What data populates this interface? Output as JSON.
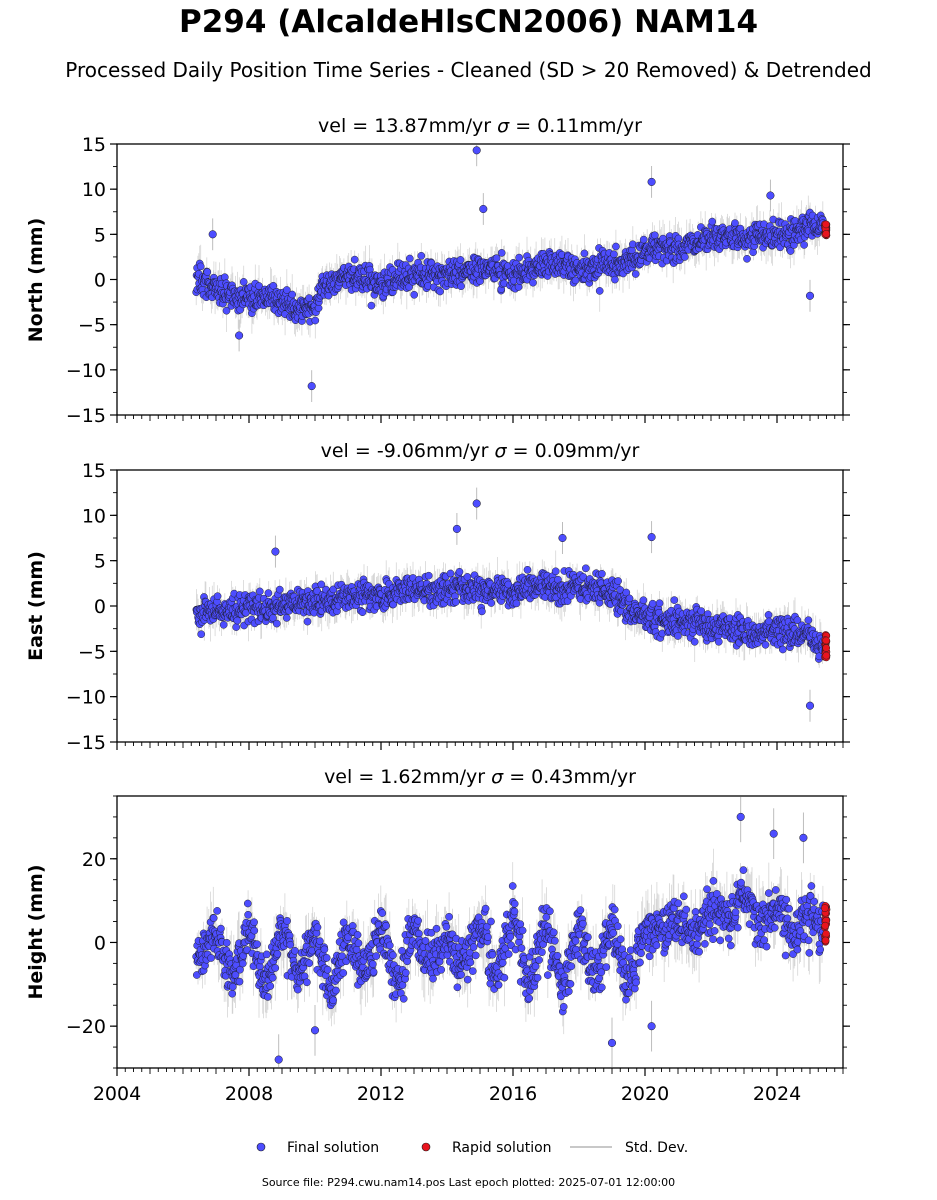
{
  "title": "P294 (AlcaldeHlsCN2006) NAM14",
  "subtitle": "Processed Daily Position Time Series - Cleaned (SD > 20 Removed) & Detrended",
  "footer": "Source file: P294.cwu.nam14.pos  Last epoch plotted: 2025-07-01 12:00:00",
  "legend": {
    "final_label": "Final solution",
    "rapid_label": "Rapid solution",
    "stddev_label": "Std. Dev."
  },
  "colors": {
    "final": "#4d4dff",
    "rapid": "#e8141e",
    "stddev": "#b5b5b5",
    "marker_edge": "#1a1a1a"
  },
  "chart_data": [
    {
      "type": "scatter",
      "panel": "north",
      "title_prefix": "vel = 13.87mm/yr",
      "title_sigma": "σ",
      "title_suffix": " = 0.11mm/yr",
      "ylabel": "North (mm)",
      "xlabel": "",
      "xlim": [
        2004,
        2026
      ],
      "ylim": [
        -15,
        15
      ],
      "yticks": [
        "15",
        "10",
        "5",
        "0",
        "−5",
        "−10",
        "−15"
      ],
      "x_tick_labels": [],
      "grid": false,
      "series": [
        {
          "name": "Final solution",
          "x": [
            2006.4,
            2007.0,
            2007.5,
            2008.0,
            2008.5,
            2009.0,
            2009.5,
            2009.9,
            2010.2,
            2010.6,
            2011.0,
            2011.5,
            2012.0,
            2012.5,
            2013.0,
            2013.5,
            2014.0,
            2014.5,
            2015.0,
            2015.5,
            2016.0,
            2016.5,
            2017.0,
            2017.5,
            2018.0,
            2018.5,
            2019.0,
            2019.5,
            2020.0,
            2020.5,
            2021.0,
            2021.5,
            2022.0,
            2022.5,
            2023.0,
            2023.5,
            2024.0,
            2024.5,
            2025.0,
            2025.4
          ],
          "y": [
            0.5,
            -1.0,
            -1.8,
            -2.2,
            -2.0,
            -2.5,
            -3.5,
            -3.8,
            -1.0,
            -0.5,
            0.0,
            0.2,
            -0.5,
            0.0,
            0.3,
            0.5,
            0.5,
            0.8,
            1.0,
            1.2,
            0.5,
            0.8,
            1.5,
            1.8,
            1.2,
            1.5,
            1.8,
            2.0,
            3.0,
            3.5,
            3.5,
            4.0,
            4.5,
            4.8,
            4.5,
            5.0,
            4.5,
            5.0,
            5.5,
            6.0
          ]
        },
        {
          "name": "Rapid solution",
          "x": [
            2025.45,
            2025.48,
            2025.5
          ],
          "y": [
            6.0,
            5.5,
            5.0
          ]
        }
      ],
      "outliers": {
        "x": [
          2014.9,
          2015.1,
          2009.9,
          2006.9,
          2020.2,
          2007.7,
          2025.0,
          2023.8
        ],
        "y": [
          14.3,
          7.8,
          -11.8,
          5.0,
          10.8,
          -6.2,
          -1.8,
          9.3
        ]
      }
    },
    {
      "type": "scatter",
      "panel": "east",
      "title_prefix": "vel = -9.06mm/yr",
      "title_sigma": "σ",
      "title_suffix": " = 0.09mm/yr",
      "ylabel": "East (mm)",
      "xlabel": "",
      "xlim": [
        2004,
        2026
      ],
      "ylim": [
        -15,
        15
      ],
      "yticks": [
        "15",
        "10",
        "5",
        "0",
        "−5",
        "−10",
        "−15"
      ],
      "x_tick_labels": [],
      "grid": false,
      "series": [
        {
          "name": "Final solution",
          "x": [
            2006.4,
            2007.0,
            2007.5,
            2008.0,
            2008.5,
            2009.0,
            2009.5,
            2010.0,
            2010.5,
            2011.0,
            2011.5,
            2012.0,
            2012.5,
            2013.0,
            2013.5,
            2014.0,
            2014.5,
            2015.0,
            2015.5,
            2016.0,
            2016.5,
            2017.0,
            2017.5,
            2018.0,
            2018.5,
            2019.0,
            2019.5,
            2020.0,
            2020.5,
            2021.0,
            2021.5,
            2022.0,
            2022.5,
            2023.0,
            2023.5,
            2024.0,
            2024.5,
            2025.0,
            2025.4
          ],
          "y": [
            -1.0,
            -0.5,
            -0.5,
            0.0,
            -0.3,
            0.0,
            0.2,
            0.5,
            0.8,
            1.0,
            1.2,
            1.0,
            1.5,
            1.8,
            1.5,
            2.0,
            2.0,
            1.5,
            1.8,
            1.5,
            2.0,
            2.2,
            2.0,
            2.2,
            2.0,
            1.5,
            -0.5,
            -1.0,
            -1.5,
            -1.8,
            -2.0,
            -2.5,
            -2.2,
            -2.8,
            -3.0,
            -2.5,
            -3.0,
            -3.5,
            -4.5
          ]
        },
        {
          "name": "Rapid solution",
          "x": [
            2025.45,
            2025.48,
            2025.5
          ],
          "y": [
            -3.5,
            -4.5,
            -5.5
          ]
        }
      ],
      "outliers": {
        "x": [
          2014.3,
          2014.9,
          2008.8,
          2025.0,
          2020.2,
          2017.5
        ],
        "y": [
          8.5,
          11.3,
          6.0,
          -11.0,
          7.6,
          7.5
        ]
      }
    },
    {
      "type": "scatter",
      "panel": "height",
      "title_prefix": "vel = 1.62mm/yr",
      "title_sigma": "σ",
      "title_suffix": " = 0.43mm/yr",
      "ylabel": "Height (mm)",
      "xlabel": "",
      "xlim": [
        2004,
        2026
      ],
      "ylim": [
        -30,
        35
      ],
      "yticks": [
        "20",
        "0",
        "−20"
      ],
      "x_tick_labels": [
        "2004",
        "2008",
        "2012",
        "2016",
        "2020",
        "2024"
      ],
      "grid": false,
      "series": [
        {
          "name": "Final solution",
          "x": [
            2006.4,
            2007.0,
            2007.5,
            2008.0,
            2008.5,
            2009.0,
            2009.5,
            2010.0,
            2010.5,
            2011.0,
            2011.5,
            2012.0,
            2012.5,
            2013.0,
            2013.5,
            2014.0,
            2014.5,
            2015.0,
            2015.5,
            2016.0,
            2016.5,
            2017.0,
            2017.5,
            2018.0,
            2018.5,
            2019.0,
            2019.5,
            2020.0,
            2020.5,
            2021.0,
            2021.5,
            2022.0,
            2022.5,
            2023.0,
            2023.5,
            2024.0,
            2024.5,
            2025.0,
            2025.4
          ],
          "y": [
            -3,
            2,
            -8,
            3,
            -10,
            4,
            -9,
            3,
            -12,
            2,
            -8,
            4,
            -10,
            3,
            -5,
            0,
            -6,
            4,
            -8,
            6,
            -10,
            5,
            -12,
            3,
            -8,
            4,
            -10,
            2,
            3,
            5,
            2,
            8,
            5,
            12,
            4,
            9,
            3,
            6,
            5
          ]
        },
        {
          "name": "Rapid solution",
          "x": [
            2025.45,
            2025.48,
            2025.5
          ],
          "y": [
            8,
            4,
            1
          ]
        }
      ],
      "outliers": {
        "x": [
          2008.9,
          2022.9,
          2023.9,
          2024.8,
          2020.2,
          2010.0,
          2019.0
        ],
        "y": [
          -28,
          30,
          26,
          25,
          -20,
          -21,
          -24
        ]
      }
    }
  ]
}
